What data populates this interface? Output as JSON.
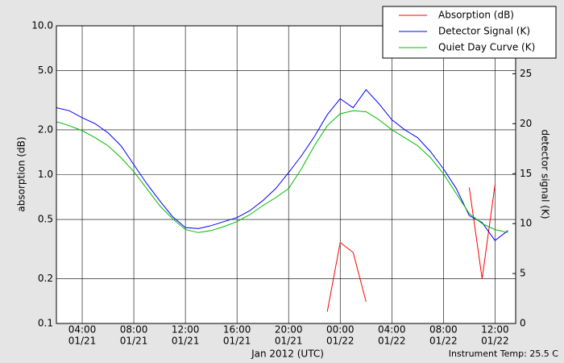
{
  "chart_data": {
    "type": "line",
    "ylabel": "absorption (dB)",
    "y2label": "detector signal (K)",
    "xlabel": "Jan 2012 (UTC)",
    "annotation": "Instrument Temp: 25.5 C",
    "log_y": true,
    "grid": true,
    "legend": "upper right",
    "x": [
      "01/21 02:00",
      "01/21 03:00",
      "01/21 04:00",
      "01/21 05:00",
      "01/21 06:00",
      "01/21 07:00",
      "01/21 08:00",
      "01/21 09:00",
      "01/21 10:00",
      "01/21 11:00",
      "01/21 12:00",
      "01/21 13:00",
      "01/21 14:00",
      "01/21 15:00",
      "01/21 16:00",
      "01/21 17:00",
      "01/21 18:00",
      "01/21 19:00",
      "01/21 20:00",
      "01/21 21:00",
      "01/21 22:00",
      "01/21 23:00",
      "01/22 00:00",
      "01/22 01:00",
      "01/22 02:00",
      "01/22 03:00",
      "01/22 04:00",
      "01/22 05:00",
      "01/22 06:00",
      "01/22 07:00",
      "01/22 08:00",
      "01/22 09:00",
      "01/22 10:00",
      "01/22 11:00",
      "01/22 12:00",
      "01/22 13:00"
    ],
    "xlim": [
      "01/21 02:00",
      "01/22 13:36"
    ],
    "xticks": [
      {
        "value": "01/21 04:00",
        "label": [
          "04:00",
          "01/21"
        ]
      },
      {
        "value": "01/21 08:00",
        "label": [
          "08:00",
          "01/21"
        ]
      },
      {
        "value": "01/21 12:00",
        "label": [
          "12:00",
          "01/21"
        ]
      },
      {
        "value": "01/21 16:00",
        "label": [
          "16:00",
          "01/21"
        ]
      },
      {
        "value": "01/21 20:00",
        "label": [
          "20:00",
          "01/21"
        ]
      },
      {
        "value": "01/22 00:00",
        "label": [
          "00:00",
          "01/22"
        ]
      },
      {
        "value": "01/22 04:00",
        "label": [
          "04:00",
          "01/22"
        ]
      },
      {
        "value": "01/22 08:00",
        "label": [
          "08:00",
          "01/22"
        ]
      },
      {
        "value": "01/22 12:00",
        "label": [
          "12:00",
          "01/22"
        ]
      }
    ],
    "ylim": [
      0.1,
      10
    ],
    "yticks": [
      0.1,
      0.2,
      0.5,
      {
        "value": 1,
        "label": "1.0"
      },
      {
        "value": 2,
        "label": "2.0"
      },
      {
        "value": 5,
        "label": "5.0"
      },
      {
        "value": 10,
        "label": "10.0"
      }
    ],
    "y2lim": [
      0,
      29.8
    ],
    "y2ticks": [
      0,
      5,
      10,
      15,
      20,
      25
    ],
    "series": [
      {
        "name": "Absorption (dB)",
        "color": "#ff0000",
        "values": [
          null,
          null,
          null,
          null,
          null,
          null,
          null,
          null,
          null,
          null,
          null,
          null,
          null,
          null,
          null,
          null,
          null,
          null,
          null,
          null,
          null,
          0.12,
          0.35,
          0.3,
          0.14,
          null,
          null,
          null,
          null,
          null,
          null,
          null,
          0.82,
          0.2,
          0.86,
          null
        ]
      },
      {
        "name": "Detector Signal (K)",
        "color": "#0000ff",
        "axis": "y2",
        "values": [
          21.6,
          21.3,
          20.6,
          20.0,
          19.1,
          17.8,
          15.9,
          14.0,
          12.3,
          10.7,
          9.6,
          9.5,
          9.8,
          10.2,
          10.6,
          11.3,
          12.3,
          13.5,
          15.1,
          16.8,
          18.7,
          20.9,
          22.5,
          21.6,
          23.4,
          22.0,
          20.4,
          19.4,
          18.6,
          17.2,
          15.5,
          13.5,
          10.8,
          10.1,
          8.3,
          9.3
        ]
      },
      {
        "name": "Quiet Day Curve (K)",
        "color": "#00bb00",
        "axis": "y2",
        "values": [
          20.2,
          19.8,
          19.3,
          18.6,
          17.8,
          16.6,
          15.2,
          13.5,
          11.8,
          10.5,
          9.4,
          9.1,
          9.3,
          9.7,
          10.2,
          10.9,
          11.8,
          12.6,
          13.5,
          15.5,
          17.8,
          19.8,
          21.0,
          21.3,
          21.2,
          20.4,
          19.4,
          18.6,
          17.8,
          16.6,
          15.0,
          13.0,
          11.0,
          10.0,
          9.4,
          9.1
        ]
      }
    ]
  }
}
